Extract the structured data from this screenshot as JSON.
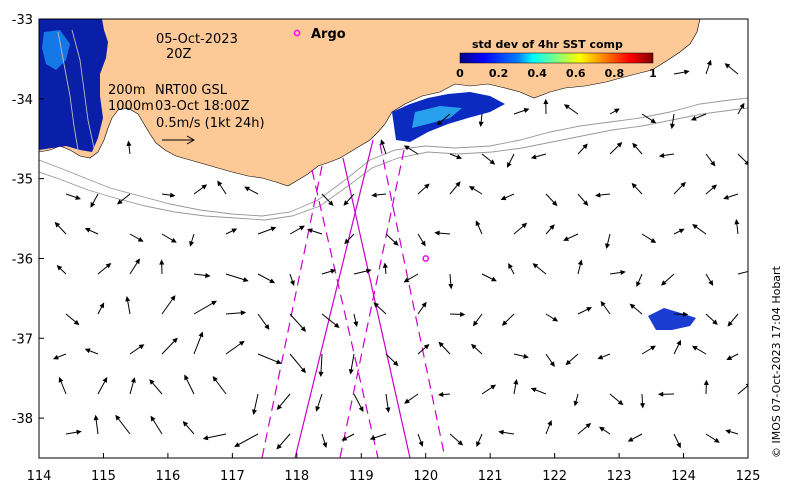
{
  "axes": {
    "lon_ticks": [
      "114",
      "115",
      "116",
      "117",
      "118",
      "119",
      "120",
      "121",
      "122",
      "123",
      "124",
      "125"
    ],
    "lat_ticks": [
      "-33",
      "-34",
      "-35",
      "-36",
      "-37",
      "-38"
    ],
    "lon_range": [
      114,
      125
    ],
    "lat_range": [
      -38.5,
      -33
    ]
  },
  "annotations": {
    "date": "05-Oct-2023",
    "hour": "20Z",
    "contour_200": "200m",
    "contour_1000": "1000m",
    "product": "NRT00 GSL",
    "product_time": "03-Oct 18:00Z",
    "scale_label": "0.5m/s (1kt 24h)",
    "argo_label": "Argo"
  },
  "colorbar": {
    "title": "std dev of 4hr SST comp",
    "ticks": [
      "0",
      "0.2",
      "0.4",
      "0.6",
      "0.8",
      "1"
    ],
    "colors": [
      "#00007f",
      "#0000ff",
      "#0080ff",
      "#00ffff",
      "#80ff80",
      "#ffff00",
      "#ff8000",
      "#ff0000",
      "#7f0000"
    ]
  },
  "credit": "© IMOS 07-Oct-2023 17:04 Hobart",
  "argo_float": {
    "lon": 120.0,
    "lat": -36.0
  },
  "colors": {
    "land": "#fdc997",
    "ocean": "#ffffff",
    "track": "#cc00cc",
    "argo": "#ff00ff",
    "contour": "#999999"
  }
}
